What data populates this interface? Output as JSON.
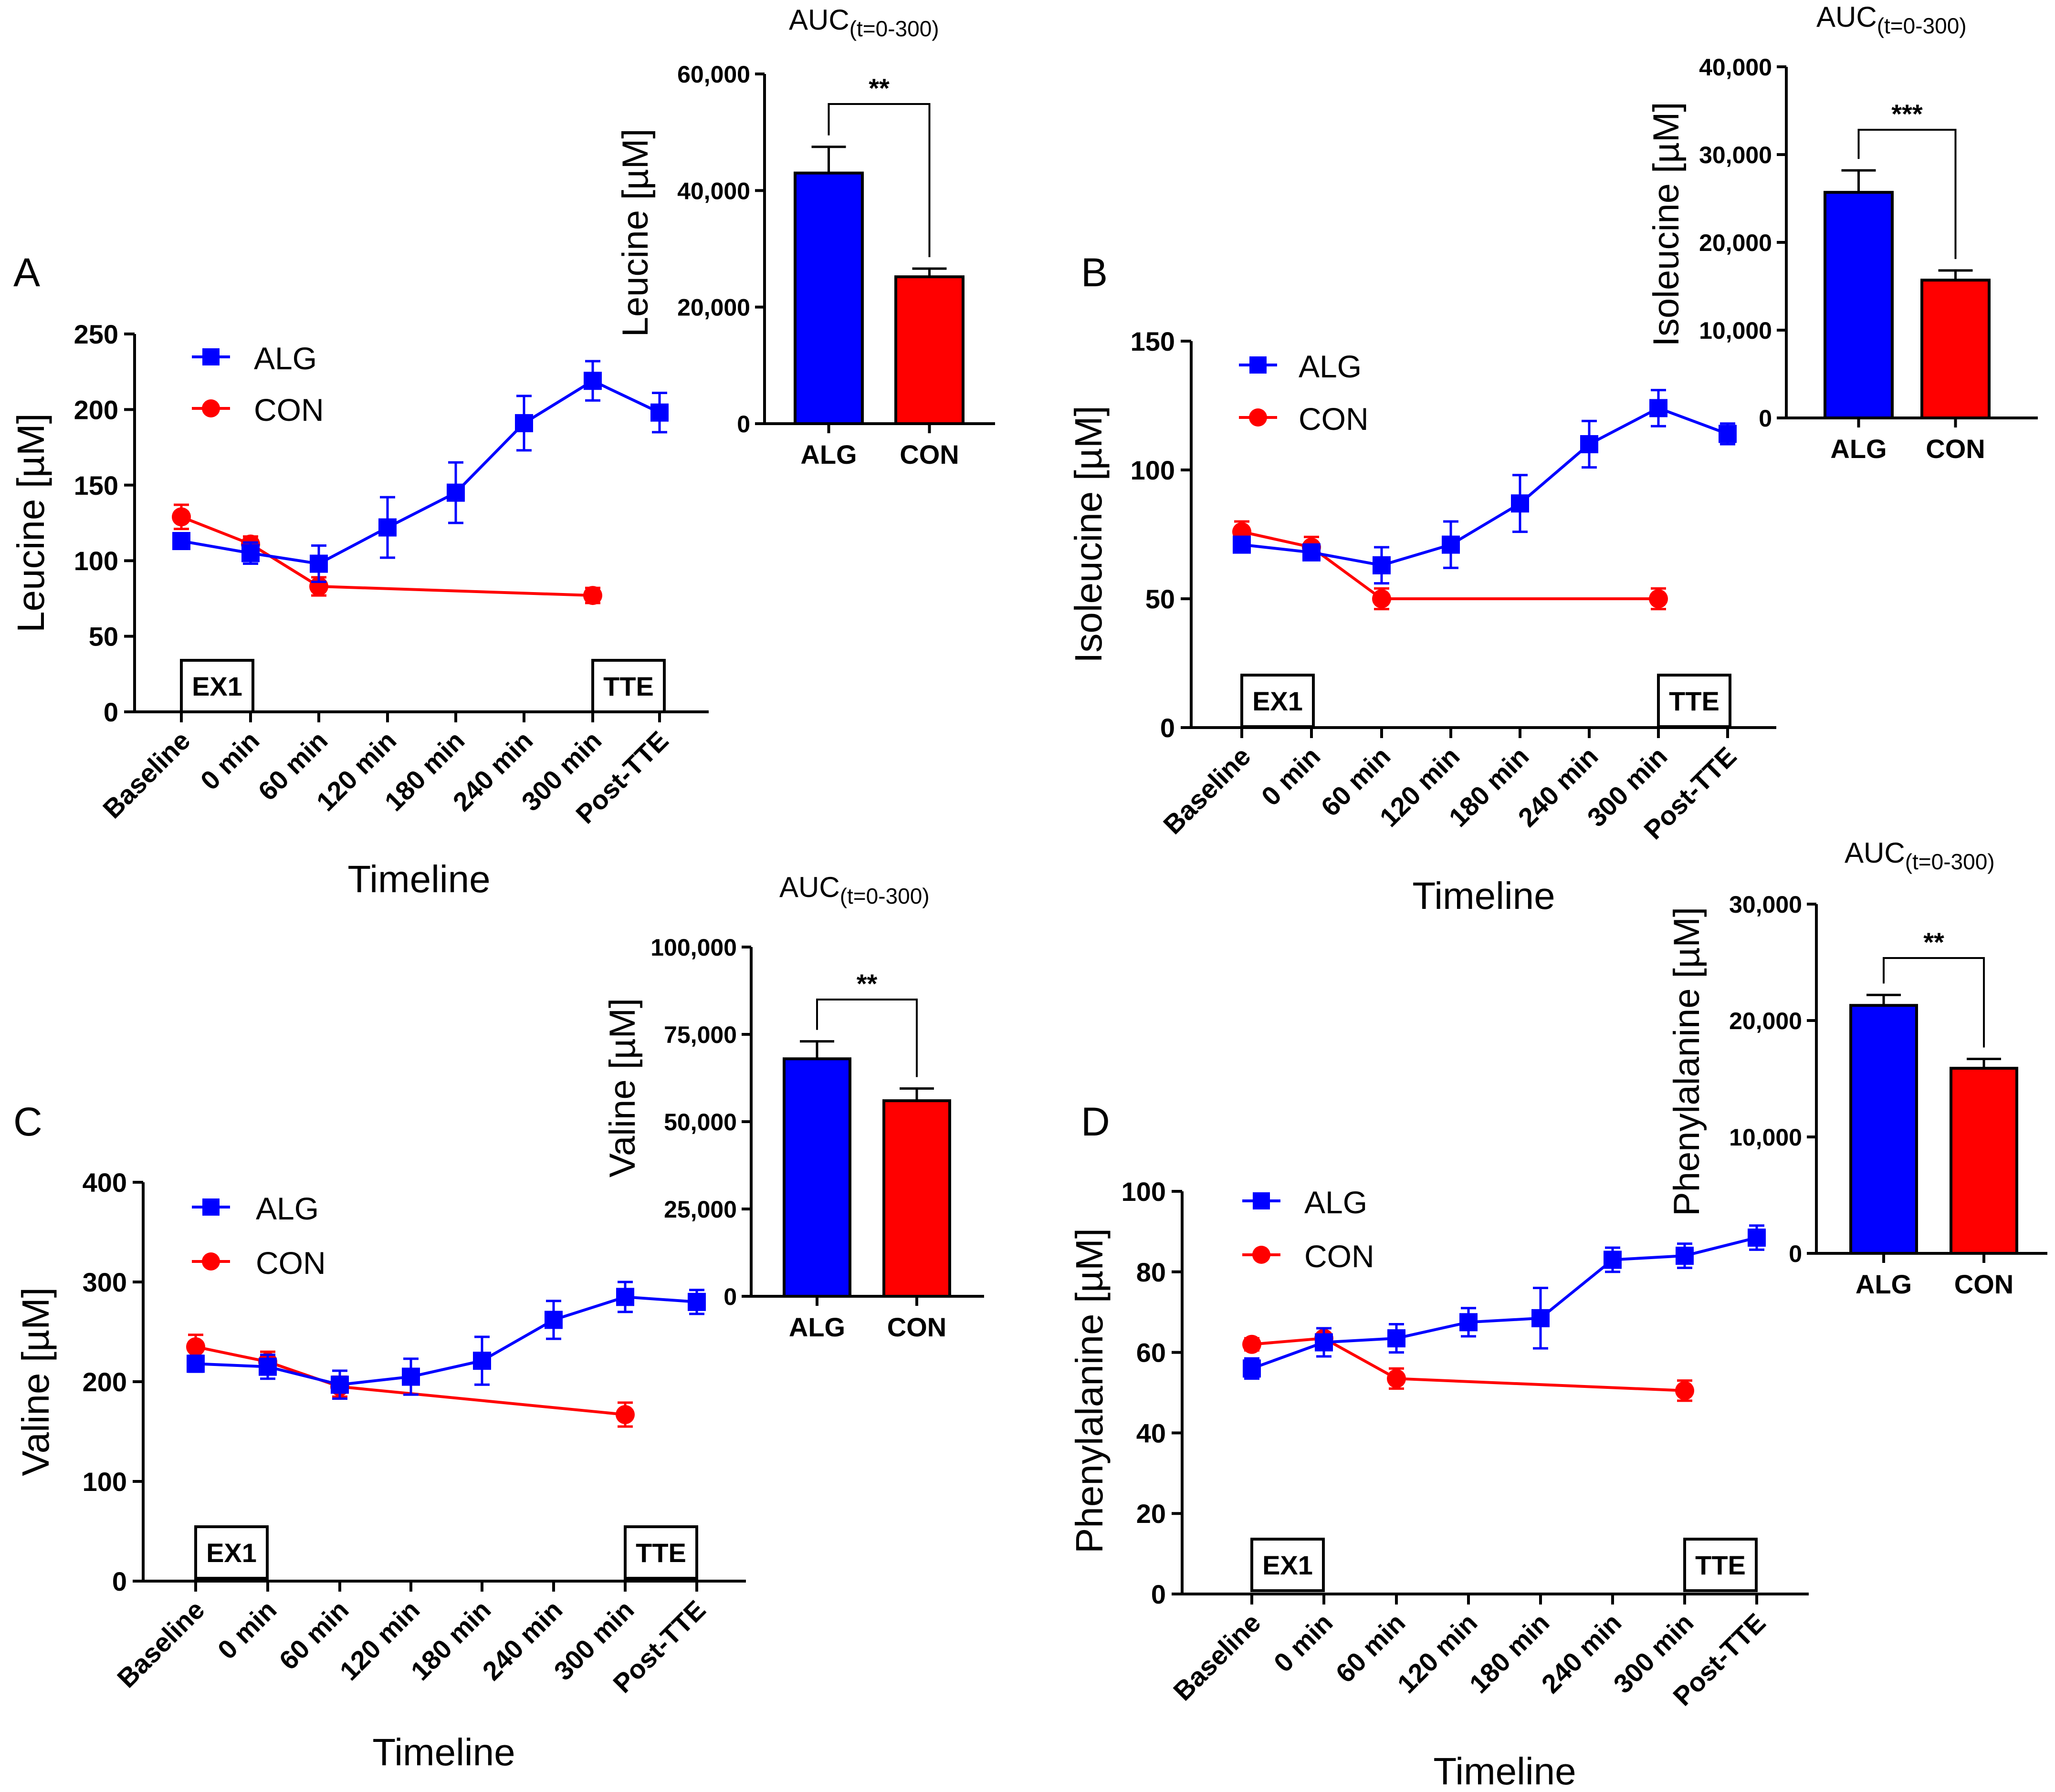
{
  "figure": {
    "colors": {
      "alg": "#0000ff",
      "con": "#ff0000",
      "axis": "#000000"
    }
  },
  "chart_data": [
    {
      "panel": "A",
      "type": "line",
      "xlabel": "Timeline",
      "ylabel": "Leucine [µM]",
      "categories": [
        "Baseline",
        "0 min",
        "60 min",
        "120 min",
        "180 min",
        "240 min",
        "300 min",
        "Post-TTE"
      ],
      "ylim": [
        0,
        250
      ],
      "yticks": [
        0,
        50,
        100,
        150,
        200,
        250
      ],
      "ytick_labels": [
        "0",
        "50",
        "100",
        "150",
        "200",
        "250"
      ],
      "legend": [
        "ALG",
        "CON"
      ],
      "legend_position": "top-left",
      "event_labels": [
        "EX1",
        "TTE"
      ],
      "series": [
        {
          "name": "ALG",
          "marker": "square",
          "values": [
            113,
            105,
            98,
            122,
            145,
            191,
            219,
            198
          ],
          "errors": [
            5,
            7,
            12,
            20,
            20,
            18,
            13,
            13
          ]
        },
        {
          "name": "CON",
          "marker": "circle",
          "values": [
            129,
            111,
            83,
            null,
            null,
            null,
            77,
            null
          ],
          "errors": [
            8,
            5,
            6,
            null,
            null,
            null,
            5,
            null
          ]
        }
      ],
      "inset": {
        "type": "bar",
        "title": "AUC(t=0-300)",
        "title_main": "AUC",
        "title_sub": "(t=0-300)",
        "ylabel": "Leucine [µM]",
        "categories": [
          "ALG",
          "CON"
        ],
        "values": [
          43000,
          25200
        ],
        "errors": [
          4500,
          1400
        ],
        "ylim": [
          0,
          60000
        ],
        "ytick_labels": [
          "0",
          "20,000",
          "40,000",
          "60,000"
        ],
        "significance": "**"
      }
    },
    {
      "panel": "B",
      "type": "line",
      "xlabel": "Timeline",
      "ylabel": "Isoleucine [µM]",
      "categories": [
        "Baseline",
        "0 min",
        "60 min",
        "120 min",
        "180 min",
        "240 min",
        "300 min",
        "Post-TTE"
      ],
      "ylim": [
        0,
        150
      ],
      "yticks": [
        0,
        50,
        100,
        150
      ],
      "ytick_labels": [
        "0",
        "50",
        "100",
        "150"
      ],
      "legend": [
        "ALG",
        "CON"
      ],
      "legend_position": "top-left",
      "event_labels": [
        "EX1",
        "TTE"
      ],
      "series": [
        {
          "name": "ALG",
          "marker": "square",
          "values": [
            71,
            68,
            63,
            71,
            87,
            110,
            124,
            114
          ],
          "errors": [
            3,
            3,
            7,
            9,
            11,
            9,
            7,
            4
          ]
        },
        {
          "name": "CON",
          "marker": "circle",
          "values": [
            76,
            70,
            50,
            null,
            null,
            null,
            50,
            null
          ],
          "errors": [
            4,
            4,
            4,
            null,
            null,
            null,
            4,
            null
          ]
        }
      ],
      "inset": {
        "type": "bar",
        "title": "AUC(t=0-300)",
        "title_main": "AUC",
        "title_sub": "(t=0-300)",
        "ylabel": "Isoleucine [µM]",
        "categories": [
          "ALG",
          "CON"
        ],
        "values": [
          25700,
          15700
        ],
        "errors": [
          2500,
          1100
        ],
        "ylim": [
          0,
          40000
        ],
        "ytick_labels": [
          "0",
          "10,000",
          "20,000",
          "30,000",
          "40,000"
        ],
        "significance": "***"
      }
    },
    {
      "panel": "C",
      "type": "line",
      "xlabel": "Timeline",
      "ylabel": "Valine [µM]",
      "categories": [
        "Baseline",
        "0 min",
        "60 min",
        "120 min",
        "180 min",
        "240 min",
        "300 min",
        "Post-TTE"
      ],
      "ylim": [
        0,
        400
      ],
      "yticks": [
        0,
        100,
        200,
        300,
        400
      ],
      "ytick_labels": [
        "0",
        "100",
        "200",
        "300",
        "400"
      ],
      "legend": [
        "ALG",
        "CON"
      ],
      "legend_position": "top-left",
      "event_labels": [
        "EX1",
        "TTE"
      ],
      "series": [
        {
          "name": "ALG",
          "marker": "square",
          "values": [
            218,
            215,
            197,
            205,
            221,
            262,
            285,
            280
          ],
          "errors": [
            8,
            12,
            14,
            18,
            24,
            19,
            15,
            12
          ]
        },
        {
          "name": "CON",
          "marker": "circle",
          "values": [
            235,
            220,
            195,
            null,
            null,
            null,
            167,
            null
          ],
          "errors": [
            12,
            10,
            10,
            null,
            null,
            null,
            12,
            null
          ]
        }
      ],
      "inset": {
        "type": "bar",
        "title": "AUC(t=0-300)",
        "title_main": "AUC",
        "title_sub": "(t=0-300)",
        "ylabel": "Valine [µM]",
        "categories": [
          "ALG",
          "CON"
        ],
        "values": [
          68000,
          56000
        ],
        "errors": [
          5000,
          3500
        ],
        "ylim": [
          0,
          100000
        ],
        "ytick_labels": [
          "0",
          "25,000",
          "50,000",
          "75,000",
          "100,000"
        ],
        "significance": "**"
      }
    },
    {
      "panel": "D",
      "type": "line",
      "xlabel": "Timeline",
      "ylabel": "Phenylalanine [µM]",
      "categories": [
        "Baseline",
        "0 min",
        "60 min",
        "120 min",
        "180 min",
        "240 min",
        "300 min",
        "Post-TTE"
      ],
      "ylim": [
        0,
        100
      ],
      "yticks": [
        0,
        20,
        40,
        60,
        80,
        100
      ],
      "ytick_labels": [
        "0",
        "20",
        "40",
        "60",
        "80",
        "100"
      ],
      "legend": [
        "ALG",
        "CON"
      ],
      "legend_position": "top-left",
      "event_labels": [
        "EX1",
        "TTE"
      ],
      "series": [
        {
          "name": "ALG",
          "marker": "square",
          "values": [
            56,
            62.5,
            63.5,
            67.5,
            68.5,
            83,
            84,
            88.5
          ],
          "errors": [
            2.5,
            3.5,
            3.5,
            3.5,
            7.5,
            3,
            3,
            3
          ]
        },
        {
          "name": "CON",
          "marker": "circle",
          "values": [
            62,
            63.5,
            53.5,
            null,
            null,
            null,
            50.5,
            null
          ],
          "errors": [
            1.5,
            2.5,
            2.5,
            null,
            null,
            null,
            2.5,
            null
          ]
        }
      ],
      "inset": {
        "type": "bar",
        "title": "AUC(t=0-300)",
        "title_main": "AUC",
        "title_sub": "(t=0-300)",
        "ylabel": "Phenylalanine [µM]",
        "categories": [
          "ALG",
          "CON"
        ],
        "values": [
          21300,
          15900
        ],
        "errors": [
          900,
          800
        ],
        "ylim": [
          0,
          30000
        ],
        "ytick_labels": [
          "0",
          "10,000",
          "20,000",
          "30,000"
        ],
        "significance": "**"
      }
    }
  ]
}
